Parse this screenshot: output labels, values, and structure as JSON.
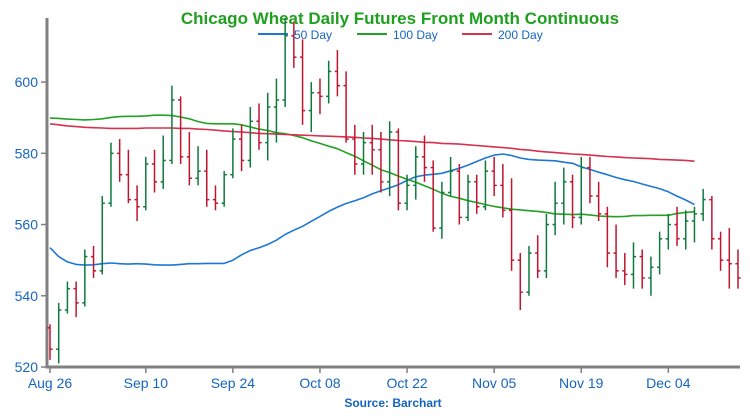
{
  "chart_data": {
    "type": "ohlc",
    "title": "Chicago Wheat Daily Futures Front Month Continuous",
    "source": "Source: Barchart",
    "ylim": [
      520,
      618
    ],
    "yticks": [
      520,
      540,
      560,
      580,
      600
    ],
    "xticks": [
      {
        "label": "Aug 26",
        "index": 0
      },
      {
        "label": "Sep 10",
        "index": 11
      },
      {
        "label": "Sep 24",
        "index": 21
      },
      {
        "label": "Oct 08",
        "index": 31
      },
      {
        "label": "Oct 22",
        "index": 41
      },
      {
        "label": "Nov 05",
        "index": 51
      },
      {
        "label": "Nov 19",
        "index": 61
      },
      {
        "label": "Dec 04",
        "index": 71
      }
    ],
    "colors": {
      "up": "#0f7a3c",
      "down": "#c0152f",
      "axis": "#808080",
      "ma50": "#1f77d4",
      "ma100": "#24a024",
      "ma200": "#d6324d"
    },
    "legend": [
      {
        "name": "50 Day",
        "color": "#1f77d4"
      },
      {
        "name": "100 Day",
        "color": "#24a024"
      },
      {
        "name": "200 Day",
        "color": "#d6324d"
      }
    ],
    "candles": [
      [
        531,
        532,
        522,
        525
      ],
      [
        525,
        538,
        521,
        536
      ],
      [
        536,
        544,
        535,
        542
      ],
      [
        542,
        544,
        534,
        538
      ],
      [
        538,
        553,
        537,
        551
      ],
      [
        551,
        554,
        545,
        547
      ],
      [
        547,
        568,
        546,
        566
      ],
      [
        566,
        583,
        565,
        580
      ],
      [
        580,
        584,
        572,
        574
      ],
      [
        574,
        581,
        566,
        567
      ],
      [
        567,
        571,
        561,
        565
      ],
      [
        565,
        579,
        564,
        577
      ],
      [
        577,
        581,
        569,
        572
      ],
      [
        572,
        585,
        570,
        578
      ],
      [
        578,
        599,
        577,
        595
      ],
      [
        595,
        596,
        577,
        579
      ],
      [
        579,
        586,
        571,
        573
      ],
      [
        573,
        582,
        571,
        575
      ],
      [
        575,
        581,
        565,
        567
      ],
      [
        567,
        571,
        564,
        566
      ],
      [
        566,
        575,
        565,
        574
      ],
      [
        574,
        587,
        573,
        584
      ],
      [
        584,
        588,
        575,
        578
      ],
      [
        578,
        593,
        576,
        589
      ],
      [
        589,
        594,
        581,
        583
      ],
      [
        583,
        597,
        578,
        593
      ],
      [
        593,
        601,
        583,
        595
      ],
      [
        595,
        618,
        593,
        613
      ],
      [
        613,
        617,
        604,
        607
      ],
      [
        607,
        612,
        588,
        592
      ],
      [
        592,
        600,
        586,
        597
      ],
      [
        597,
        601,
        591,
        596
      ],
      [
        596,
        606,
        594,
        603
      ],
      [
        603,
        609,
        596,
        599
      ],
      [
        599,
        603,
        583,
        584
      ],
      [
        584,
        588,
        574,
        577
      ],
      [
        577,
        586,
        574,
        583
      ],
      [
        583,
        588,
        574,
        581
      ],
      [
        581,
        586,
        569,
        572
      ],
      [
        572,
        589,
        568,
        586
      ],
      [
        586,
        587,
        564,
        566
      ],
      [
        566,
        574,
        564,
        571
      ],
      [
        571,
        582,
        567,
        579
      ],
      [
        579,
        585,
        572,
        576
      ],
      [
        576,
        578,
        558,
        559
      ],
      [
        559,
        572,
        556,
        569
      ],
      [
        569,
        579,
        568,
        575
      ],
      [
        575,
        577,
        560,
        562
      ],
      [
        562,
        574,
        561,
        572
      ],
      [
        572,
        574,
        563,
        565
      ],
      [
        565,
        578,
        564,
        575
      ],
      [
        575,
        579,
        568,
        571
      ],
      [
        571,
        577,
        562,
        564
      ],
      [
        564,
        573,
        547,
        550
      ],
      [
        550,
        552,
        536,
        541
      ],
      [
        541,
        554,
        540,
        552
      ],
      [
        552,
        557,
        545,
        547
      ],
      [
        547,
        563,
        545,
        560
      ],
      [
        560,
        572,
        557,
        566
      ],
      [
        566,
        576,
        560,
        572
      ],
      [
        572,
        574,
        559,
        562
      ],
      [
        562,
        579,
        560,
        576
      ],
      [
        576,
        579,
        566,
        568
      ],
      [
        568,
        572,
        561,
        563
      ],
      [
        563,
        565,
        548,
        552
      ],
      [
        552,
        560,
        545,
        547
      ],
      [
        547,
        552,
        543,
        546
      ],
      [
        546,
        555,
        542,
        551
      ],
      [
        551,
        553,
        542,
        545
      ],
      [
        545,
        551,
        540,
        548
      ],
      [
        548,
        558,
        546,
        556
      ],
      [
        556,
        563,
        553,
        560
      ],
      [
        560,
        565,
        554,
        556
      ],
      [
        556,
        564,
        553,
        561
      ],
      [
        561,
        565,
        555,
        563
      ],
      [
        563,
        570,
        561,
        567
      ],
      [
        567,
        568,
        553,
        556
      ],
      [
        556,
        558,
        547,
        550
      ],
      [
        550,
        559,
        542,
        549
      ],
      [
        549,
        553,
        542,
        545
      ]
    ],
    "series": [
      {
        "name": "50 Day",
        "key": "ma50",
        "values": [
          553.5,
          551,
          549.5,
          548.8,
          548.6,
          548.7,
          549,
          549.2,
          549,
          548.9,
          549,
          548.9,
          548.7,
          548.6,
          548.6,
          548.8,
          549,
          549,
          549.1,
          549.1,
          549.1,
          550,
          551.5,
          552.7,
          553.5,
          554.4,
          555.6,
          557.2,
          558.4,
          559.5,
          560.9,
          562.3,
          563.7,
          564.9,
          565.9,
          566.7,
          567.5,
          568.6,
          569.5,
          570.3,
          571.2,
          572.4,
          573.4,
          573.9,
          574.1,
          574.4,
          575.1,
          575.8,
          576.7,
          577.7,
          578.7,
          579.5,
          579.8,
          579.4,
          578.7,
          578.3,
          578.1,
          578,
          577.9,
          577.5,
          577.2,
          576.2,
          575.5,
          574.7,
          574,
          573.2,
          572.6,
          572.1,
          571.4,
          570.7,
          570.1,
          569.2,
          568,
          566.9,
          565.6
        ]
      },
      {
        "name": "100 Day",
        "key": "ma100",
        "values": [
          589.9,
          589.8,
          589.6,
          589.5,
          589.4,
          589.5,
          589.7,
          590.1,
          590.3,
          590.4,
          590.4,
          590.5,
          590.7,
          590.7,
          590.6,
          590.2,
          589.7,
          588.9,
          588.4,
          588.3,
          588.3,
          588.3,
          588,
          587.4,
          586.8,
          586.4,
          585.8,
          585.5,
          585,
          584.4,
          583.5,
          582.8,
          582,
          581.3,
          580.2,
          579.2,
          577.9,
          576.7,
          575.4,
          574.6,
          573.6,
          572.7,
          571.9,
          570.9,
          569.9,
          568.8,
          567.9,
          567.4,
          566.7,
          566.2,
          565.6,
          565.1,
          564.7,
          564.3,
          564.1,
          563.9,
          563.7,
          563.4,
          563,
          562.9,
          562.8,
          562.9,
          562.7,
          562.4,
          562.3,
          562.2,
          562.3,
          562.5,
          562.5,
          562.6,
          562.6,
          562.6,
          563.1,
          563.4,
          563.6
        ]
      },
      {
        "name": "200 Day",
        "key": "ma200",
        "values": [
          588.3,
          588,
          587.7,
          587.5,
          587.3,
          587.2,
          587.1,
          587,
          587,
          587,
          587,
          587.1,
          587.1,
          587.1,
          587.1,
          587,
          587,
          586.8,
          586.7,
          586.5,
          586.3,
          586.1,
          586,
          585.8,
          585.6,
          585.5,
          585.4,
          585.3,
          585.2,
          585.1,
          585,
          584.9,
          584.8,
          584.7,
          584.6,
          584.5,
          584.3,
          584.2,
          584,
          583.8,
          583.6,
          583.5,
          583.3,
          583.1,
          583,
          582.8,
          582.7,
          582.6,
          582.4,
          582.2,
          582,
          581.8,
          581.6,
          581.4,
          581.1,
          580.9,
          580.6,
          580.4,
          580.2,
          580,
          579.8,
          579.7,
          579.5,
          579.3,
          579.1,
          579,
          578.8,
          578.7,
          578.6,
          578.5,
          578.3,
          578.2,
          578.1,
          578,
          577.8
        ]
      }
    ]
  }
}
